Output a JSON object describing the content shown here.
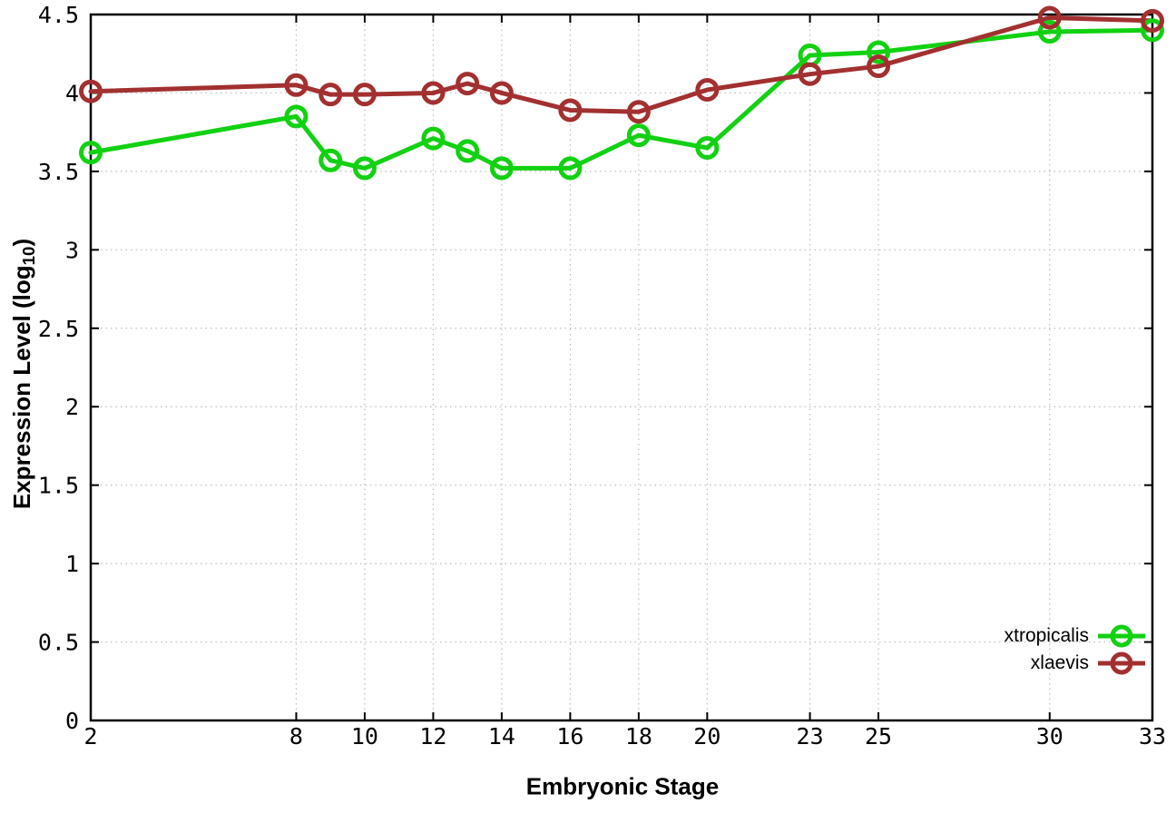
{
  "figure": {
    "background": "#ffffff",
    "border_color": "#000000",
    "grid_color": "#bcbcbc",
    "tick_label_color": "#000000"
  },
  "chart_data": {
    "type": "line",
    "title": "",
    "xlabel": "Embryonic Stage",
    "ylabel": "Expression Level (log10)",
    "ylabel_parts": {
      "prefix": "Expression Level (log",
      "sub": "10",
      "suffix": ")"
    },
    "xlim": [
      2,
      33
    ],
    "ylim": [
      0,
      4.5
    ],
    "x_ticks": [
      2,
      8,
      10,
      12,
      14,
      16,
      18,
      20,
      23,
      25,
      30,
      33
    ],
    "x_tick_labels": [
      "2",
      "8",
      "10",
      "12",
      "14",
      "16",
      "18",
      "20",
      "23",
      "25",
      "30",
      "33"
    ],
    "y_ticks": [
      0,
      0.5,
      1,
      1.5,
      2,
      2.5,
      3,
      3.5,
      4,
      4.5
    ],
    "y_tick_labels": [
      "0",
      "0.5",
      "1",
      "1.5",
      "2",
      "2.5",
      "3",
      "3.5",
      "4",
      "4.5"
    ],
    "grid": true,
    "legend_position": "bottom-right-inside",
    "x": [
      2,
      8,
      9,
      10,
      12,
      13,
      14,
      16,
      18,
      20,
      23,
      25,
      30,
      33
    ],
    "series": [
      {
        "name": "xtropicalis",
        "color": "#12d112",
        "values": [
          3.62,
          3.85,
          3.57,
          3.52,
          3.71,
          3.63,
          3.52,
          3.52,
          3.73,
          3.65,
          4.24,
          4.26,
          4.39,
          4.4
        ]
      },
      {
        "name": "xlaevis",
        "color": "#a33030",
        "values": [
          4.01,
          4.05,
          3.99,
          3.99,
          4.0,
          4.06,
          4.0,
          3.89,
          3.88,
          4.02,
          4.12,
          4.17,
          4.48,
          4.46
        ]
      }
    ]
  }
}
